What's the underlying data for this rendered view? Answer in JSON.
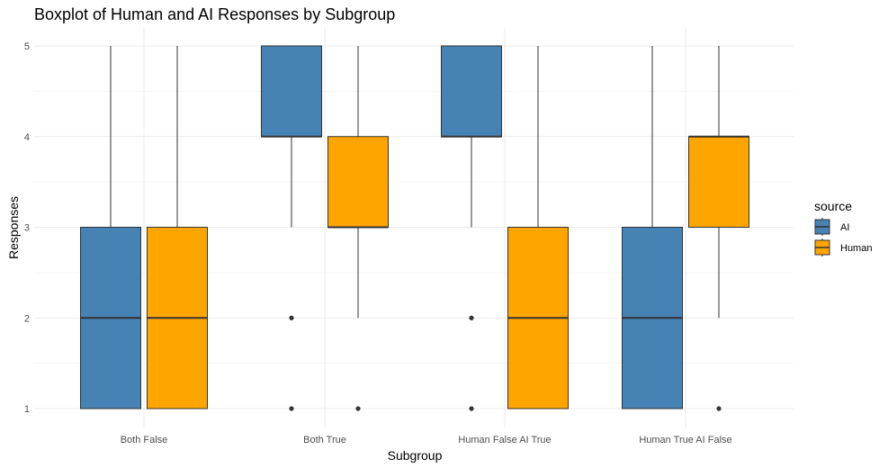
{
  "chart_data": {
    "type": "boxplot",
    "title": "Boxplot of Human and AI Responses by Subgroup",
    "xlabel": "Subgroup",
    "ylabel": "Responses",
    "ylim": [
      1,
      5
    ],
    "yticks": [
      1,
      2,
      3,
      4,
      5
    ],
    "grid": true,
    "legend": {
      "title": "source",
      "position": "right"
    },
    "categories": [
      "Both False",
      "Both True",
      "Human False AI True",
      "Human True AI False"
    ],
    "series": [
      {
        "name": "AI",
        "color": "#4682b4",
        "boxes": [
          {
            "whisker_low": 1,
            "q1": 1,
            "median": 2,
            "q3": 3,
            "whisker_high": 5,
            "outliers": []
          },
          {
            "whisker_low": 3,
            "q1": 4,
            "median": 4,
            "q3": 5,
            "whisker_high": 5,
            "outliers": [
              2,
              1
            ]
          },
          {
            "whisker_low": 3,
            "q1": 4,
            "median": 4,
            "q3": 5,
            "whisker_high": 5,
            "outliers": [
              2,
              1
            ]
          },
          {
            "whisker_low": 1,
            "q1": 1,
            "median": 2,
            "q3": 3,
            "whisker_high": 5,
            "outliers": []
          }
        ]
      },
      {
        "name": "Human",
        "color": "#ffa500",
        "boxes": [
          {
            "whisker_low": 1,
            "q1": 1,
            "median": 2,
            "q3": 3,
            "whisker_high": 5,
            "outliers": []
          },
          {
            "whisker_low": 2,
            "q1": 3,
            "median": 3,
            "q3": 4,
            "whisker_high": 5,
            "outliers": [
              1
            ]
          },
          {
            "whisker_low": 1,
            "q1": 1,
            "median": 2,
            "q3": 3,
            "whisker_high": 5,
            "outliers": []
          },
          {
            "whisker_low": 2,
            "q1": 3,
            "median": 4,
            "q3": 4,
            "whisker_high": 5,
            "outliers": [
              1
            ]
          }
        ]
      }
    ]
  }
}
